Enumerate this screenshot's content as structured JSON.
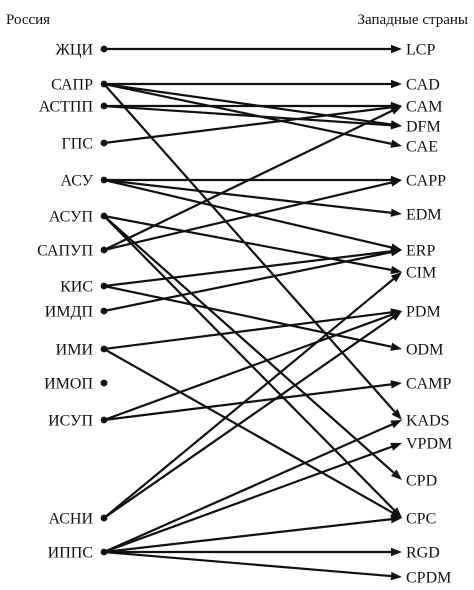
{
  "header": {
    "left_title": "Россия",
    "right_title": "Западные страны"
  },
  "left_nodes": [
    {
      "id": "zhci",
      "label": "ЖЦИ"
    },
    {
      "id": "sapr",
      "label": "САПР"
    },
    {
      "id": "astpp",
      "label": "АСТПП"
    },
    {
      "id": "gps",
      "label": "ГПС"
    },
    {
      "id": "asu",
      "label": "АСУ"
    },
    {
      "id": "asup",
      "label": "АСУП"
    },
    {
      "id": "sapup",
      "label": "САПУП"
    },
    {
      "id": "kis",
      "label": "КИС"
    },
    {
      "id": "imdp",
      "label": "ИМДП"
    },
    {
      "id": "imi",
      "label": "ИМИ"
    },
    {
      "id": "imop",
      "label": "ИМОП"
    },
    {
      "id": "isup",
      "label": "ИСУП"
    },
    {
      "id": "asni",
      "label": "АСНИ"
    },
    {
      "id": "ipps",
      "label": "ИППС"
    }
  ],
  "right_nodes": [
    {
      "id": "lcp",
      "label": "LCP"
    },
    {
      "id": "cad",
      "label": "CAD"
    },
    {
      "id": "cam",
      "label": "CAM"
    },
    {
      "id": "dfm",
      "label": "DFM"
    },
    {
      "id": "cae",
      "label": "CAE"
    },
    {
      "id": "capp",
      "label": "CAPP"
    },
    {
      "id": "edm",
      "label": "EDM"
    },
    {
      "id": "erp",
      "label": "ERP"
    },
    {
      "id": "cim",
      "label": "CIM"
    },
    {
      "id": "pdm",
      "label": "PDM"
    },
    {
      "id": "odm",
      "label": "ODM"
    },
    {
      "id": "camp",
      "label": "CAMP"
    },
    {
      "id": "kads",
      "label": "KADS"
    },
    {
      "id": "vpdm",
      "label": "VPDM"
    },
    {
      "id": "cpd",
      "label": "CPD"
    },
    {
      "id": "cpc",
      "label": "CPC"
    },
    {
      "id": "rgd",
      "label": "RGD"
    },
    {
      "id": "cpdm",
      "label": "CPDM"
    }
  ],
  "edges": [
    {
      "from": "zhci",
      "to": "lcp"
    },
    {
      "from": "sapr",
      "to": "cad"
    },
    {
      "from": "sapr",
      "to": "dfm"
    },
    {
      "from": "sapr",
      "to": "cae"
    },
    {
      "from": "sapr",
      "to": "kads"
    },
    {
      "from": "astpp",
      "to": "cam"
    },
    {
      "from": "astpp",
      "to": "dfm"
    },
    {
      "from": "gps",
      "to": "cam"
    },
    {
      "from": "asu",
      "to": "capp"
    },
    {
      "from": "asu",
      "to": "edm"
    },
    {
      "from": "asu",
      "to": "erp"
    },
    {
      "from": "asup",
      "to": "cim"
    },
    {
      "from": "asup",
      "to": "cpd"
    },
    {
      "from": "asup",
      "to": "cpc"
    },
    {
      "from": "sapup",
      "to": "cam"
    },
    {
      "from": "sapup",
      "to": "capp"
    },
    {
      "from": "kis",
      "to": "erp"
    },
    {
      "from": "kis",
      "to": "odm"
    },
    {
      "from": "imdp",
      "to": "erp"
    },
    {
      "from": "imi",
      "to": "pdm"
    },
    {
      "from": "imi",
      "to": "cpc"
    },
    {
      "from": "isup",
      "to": "pdm"
    },
    {
      "from": "isup",
      "to": "camp"
    },
    {
      "from": "asni",
      "to": "cim"
    },
    {
      "from": "asni",
      "to": "pdm"
    },
    {
      "from": "ipps",
      "to": "kads"
    },
    {
      "from": "ipps",
      "to": "vpdm"
    },
    {
      "from": "ipps",
      "to": "cpc"
    },
    {
      "from": "ipps",
      "to": "rgd"
    },
    {
      "from": "ipps",
      "to": "cpdm"
    }
  ]
}
